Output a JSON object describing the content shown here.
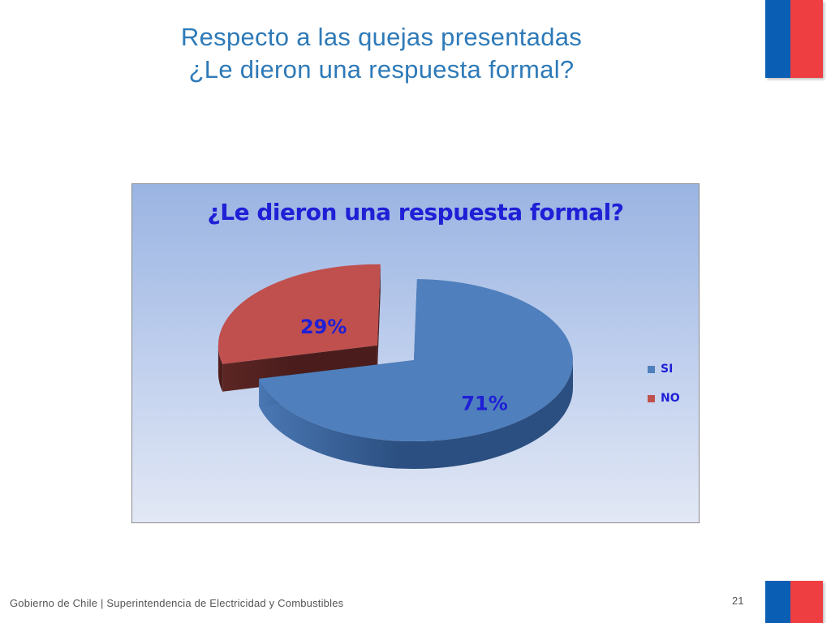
{
  "slide": {
    "title_line1": "Respecto a las quejas presentadas",
    "title_line2": "¿Le dieron una respuesta formal?",
    "footer": "Gobierno de Chile | Superintendencia de Electricidad y Combustibles",
    "page_number": "21"
  },
  "colors": {
    "title": "#2e7ab8",
    "flag_blue": "#0a5fb4",
    "flag_red": "#ef3e42",
    "chart_text": "#1f1fd6",
    "si": "#4f7fbd",
    "si_side": "#2b4f80",
    "no": "#c0504d",
    "no_side": "#4a1d1c"
  },
  "chart_data": {
    "type": "pie",
    "title": "¿Le dieron una respuesta formal?",
    "three_d": true,
    "exploded": true,
    "legend_position": "right",
    "slices": [
      {
        "label": "SI",
        "value": 71,
        "display": "71%",
        "color": "#4f7fbd"
      },
      {
        "label": "NO",
        "value": 29,
        "display": "29%",
        "color": "#c0504d"
      }
    ]
  }
}
